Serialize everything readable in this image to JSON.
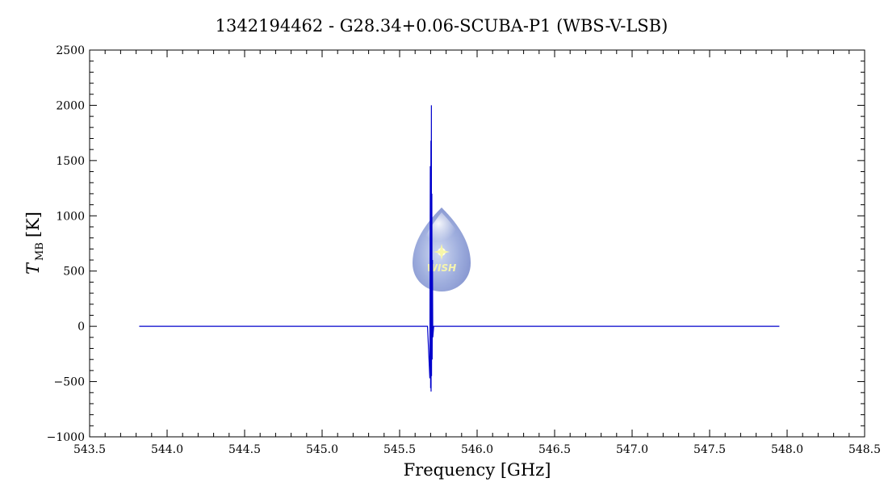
{
  "chart_data": {
    "type": "line",
    "title": "1342194462 - G28.34+0.06-SCUBA-P1 (WBS-V-LSB)",
    "xlabel": "Frequency [GHz]",
    "ylabel": "T",
    "ylabel_sub": "MB",
    "ylabel_unit": "[K]",
    "xlim": [
      543.5,
      548.5
    ],
    "ylim": [
      -1000,
      2500
    ],
    "xticks": [
      543.5,
      544.0,
      544.5,
      545.0,
      545.5,
      546.0,
      546.5,
      547.0,
      547.5,
      548.0,
      548.5
    ],
    "xtick_labels": [
      "543.5",
      "544.0",
      "544.5",
      "545.0",
      "545.5",
      "546.0",
      "546.5",
      "547.0",
      "547.5",
      "548.0",
      "548.5"
    ],
    "yticks": [
      -1000,
      -500,
      0,
      500,
      1000,
      1500,
      2000,
      2500
    ],
    "ytick_labels": [
      "−1000",
      "−500",
      "0",
      "500",
      "1000",
      "1500",
      "2000",
      "2500"
    ],
    "grid": false,
    "series": [
      {
        "color": "#0000cc",
        "x": [
          543.82,
          545.68,
          545.695,
          545.698,
          545.7,
          545.702,
          545.703,
          545.705,
          545.706,
          545.708,
          545.71,
          545.712,
          545.714,
          545.72,
          547.95
        ],
        "y": [
          0,
          0,
          -470,
          1450,
          -560,
          1680,
          -590,
          2000,
          -450,
          1200,
          -300,
          600,
          -100,
          0,
          0
        ]
      }
    ],
    "watermark": "WISH"
  },
  "colors": {
    "line": "#0000cc",
    "axes": "#000000",
    "background": "#ffffff"
  }
}
